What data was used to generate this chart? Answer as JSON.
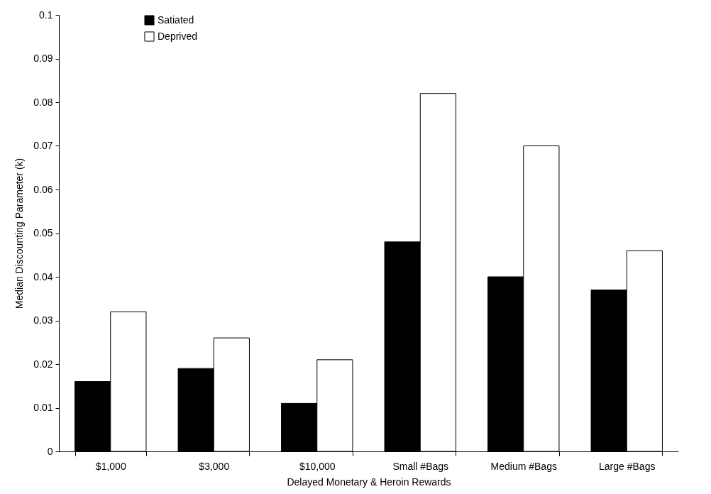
{
  "chart_data": {
    "type": "bar",
    "xlabel": "Delayed Monetary & Heroin Rewards",
    "ylabel": "Median Discounting Parameter (k)",
    "categories": [
      "$1,000",
      "$3,000",
      "$10,000",
      "Small #Bags",
      "Medium #Bags",
      "Large #Bags"
    ],
    "series": [
      {
        "name": "Satiated",
        "color": "#000000",
        "values": [
          0.016,
          0.019,
          0.011,
          0.048,
          0.04,
          0.037
        ]
      },
      {
        "name": "Deprived",
        "color": "#ffffff",
        "values": [
          0.032,
          0.026,
          0.021,
          0.082,
          0.07,
          0.046
        ]
      }
    ],
    "ylim": [
      0,
      0.1
    ],
    "yticks": [
      0,
      0.01,
      0.02,
      0.03,
      0.04,
      0.05,
      0.06,
      0.07,
      0.08,
      0.09,
      0.1
    ],
    "grid": false,
    "legend": "top left"
  }
}
